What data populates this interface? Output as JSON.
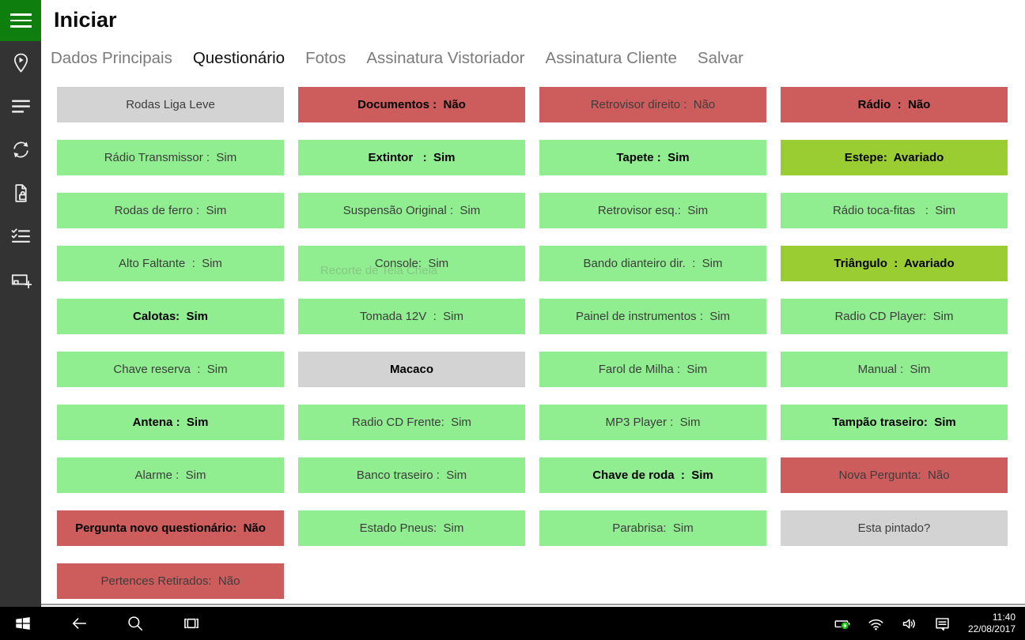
{
  "window": {
    "title": "Iniciar"
  },
  "tabs": [
    {
      "label": "Dados Principais",
      "active": false
    },
    {
      "label": "Questionário",
      "active": true
    },
    {
      "label": "Fotos",
      "active": false
    },
    {
      "label": "Assinatura Vistoriador",
      "active": false
    },
    {
      "label": "Assinatura Cliente",
      "active": false
    },
    {
      "label": "Salvar",
      "active": false
    }
  ],
  "sidebar": {
    "icons": [
      "menu-icon",
      "location-pin-icon",
      "list-lines-icon",
      "sync-icon",
      "document-lock-icon",
      "checklist-icon",
      "add-device-icon"
    ]
  },
  "colors": {
    "accent_green": "#0E7E0E",
    "answer_yes": "#90EE90",
    "answer_no": "#CD5C5C",
    "unanswered": "#D3D3D3",
    "damaged": "#9ACD32",
    "sidebar_bg": "#333333",
    "taskbar_bg": "#000000"
  },
  "questionnaire": {
    "columns": [
      [
        {
          "label": "Rodas Liga Leve",
          "state": "none",
          "bold": false
        },
        {
          "label": "Rádio Transmissor :  Sim",
          "state": "yes",
          "bold": false
        },
        {
          "label": "Rodas de ferro :  Sim",
          "state": "yes",
          "bold": false
        },
        {
          "label": "Alto Faltante  :  Sim",
          "state": "yes",
          "bold": false
        },
        {
          "label": "Calotas:  Sim",
          "state": "yes",
          "bold": true
        },
        {
          "label": "Chave reserva  :  Sim",
          "state": "yes",
          "bold": false
        },
        {
          "label": "Antena :  Sim",
          "state": "yes",
          "bold": true
        },
        {
          "label": "Alarme :  Sim",
          "state": "yes",
          "bold": false
        },
        {
          "label": "Pergunta novo questionário:  Não",
          "state": "no",
          "bold": true
        },
        {
          "label": "Pertences Retirados:  Não",
          "state": "no",
          "bold": false
        }
      ],
      [
        {
          "label": "Documentos :  Não",
          "state": "no",
          "bold": true
        },
        {
          "label": "Extintor   :  Sim",
          "state": "yes",
          "bold": true
        },
        {
          "label": "Suspensão Original :  Sim",
          "state": "yes",
          "bold": false
        },
        {
          "label": "Console:  Sim",
          "state": "yes",
          "bold": false
        },
        {
          "label": "Tomada 12V  :  Sim",
          "state": "yes",
          "bold": false
        },
        {
          "label": "Macaco",
          "state": "none",
          "bold": true
        },
        {
          "label": "Radio CD Frente:  Sim",
          "state": "yes",
          "bold": false
        },
        {
          "label": "Banco traseiro :  Sim",
          "state": "yes",
          "bold": false
        },
        {
          "label": "Estado Pneus:  Sim",
          "state": "yes",
          "bold": false
        }
      ],
      [
        {
          "label": "Retrovisor direito :  Não",
          "state": "no",
          "bold": false
        },
        {
          "label": "Tapete :  Sim",
          "state": "yes",
          "bold": true
        },
        {
          "label": "Retrovisor esq.:  Sim",
          "state": "yes",
          "bold": false
        },
        {
          "label": "Bando dianteiro dir.  :  Sim",
          "state": "yes",
          "bold": false
        },
        {
          "label": "Painel de instrumentos :  Sim",
          "state": "yes",
          "bold": false
        },
        {
          "label": "Farol de Milha :  Sim",
          "state": "yes",
          "bold": false
        },
        {
          "label": "MP3 Player :  Sim",
          "state": "yes",
          "bold": false
        },
        {
          "label": "Chave de roda  :  Sim",
          "state": "yes",
          "bold": true
        },
        {
          "label": "Parabrisa:  Sim",
          "state": "yes",
          "bold": false
        }
      ],
      [
        {
          "label": "Rádio  :  Não",
          "state": "no",
          "bold": true
        },
        {
          "label": "Estepe:  Avariado",
          "state": "damaged",
          "bold": true
        },
        {
          "label": "Rádio toca-fitas   :  Sim",
          "state": "yes",
          "bold": false
        },
        {
          "label": "Triângulo  :  Avariado",
          "state": "damaged",
          "bold": true
        },
        {
          "label": "Radio CD Player:  Sim",
          "state": "yes",
          "bold": false
        },
        {
          "label": "Manual :  Sim",
          "state": "yes",
          "bold": false
        },
        {
          "label": "Tampão traseiro:  Sim",
          "state": "yes",
          "bold": true
        },
        {
          "label": "Nova Pergunta:  Não",
          "state": "no",
          "bold": false
        },
        {
          "label": "Esta pintado?",
          "state": "none",
          "bold": false
        }
      ]
    ]
  },
  "watermark": "Recorte de Tela Cheia",
  "taskbar": {
    "time": "11:40",
    "date": "22/08/2017"
  }
}
